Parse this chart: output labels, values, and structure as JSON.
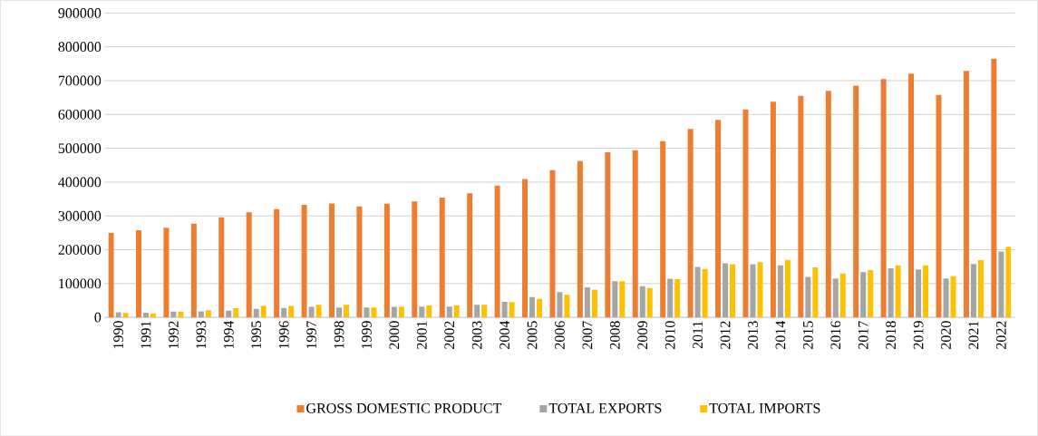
{
  "chart_data": {
    "type": "bar",
    "categories": [
      "1990",
      "1991",
      "1992",
      "1993",
      "1994",
      "1995",
      "1996",
      "1997",
      "1998",
      "1999",
      "2000",
      "2001",
      "2002",
      "2003",
      "2004",
      "2005",
      "2006",
      "2007",
      "2008",
      "2009",
      "2010",
      "2011",
      "2012",
      "2013",
      "2014",
      "2015",
      "2016",
      "2017",
      "2018",
      "2019",
      "2020",
      "2021",
      "2022"
    ],
    "series": [
      {
        "name": "GROSS DOMESTIC PRODUCT",
        "color": "#ed7d31",
        "values": [
          250000,
          258000,
          265000,
          277000,
          296000,
          311000,
          320000,
          333000,
          337000,
          328000,
          336000,
          343000,
          354000,
          367000,
          390000,
          409000,
          435000,
          462000,
          488000,
          494000,
          521000,
          557000,
          584000,
          615000,
          638000,
          655000,
          670000,
          685000,
          705000,
          721000,
          658000,
          729000,
          765000
        ]
      },
      {
        "name": "TOTAL EXPORTS",
        "color": "#a5a5a5",
        "values": [
          15000,
          14000,
          17000,
          18000,
          20000,
          25000,
          28000,
          31000,
          29000,
          29000,
          31000,
          32000,
          32000,
          37000,
          46000,
          60000,
          75000,
          89000,
          107000,
          92000,
          114000,
          149000,
          160000,
          157000,
          154000,
          120000,
          115000,
          134000,
          145000,
          142000,
          115000,
          158000,
          195000
        ]
      },
      {
        "name": "TOTAL IMPORTS",
        "color": "#ffc000",
        "values": [
          13000,
          12000,
          17000,
          21000,
          27000,
          34000,
          34000,
          37000,
          37000,
          29000,
          31000,
          35000,
          36000,
          37000,
          45000,
          55000,
          67000,
          82000,
          107000,
          87000,
          113000,
          143000,
          157000,
          163000,
          170000,
          148000,
          130000,
          140000,
          154000,
          154000,
          122000,
          169000,
          209000
        ]
      }
    ],
    "ylim": [
      0,
      900000
    ],
    "yticks": [
      0,
      100000,
      200000,
      300000,
      400000,
      500000,
      600000,
      700000,
      800000,
      900000
    ],
    "grid": "y",
    "legend": "bottom"
  }
}
